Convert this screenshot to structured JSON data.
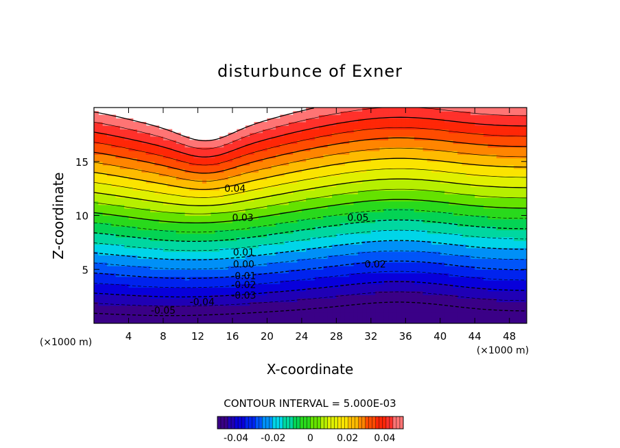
{
  "chart_data": {
    "type": "heatmap",
    "title": "disturbunce of Exner",
    "xlabel": "X-coordinate",
    "ylabel": "Z-coordinate",
    "x_unit_left": "(×1000 m)",
    "x_unit_right": "(×1000 m)",
    "xlim": [
      0,
      50
    ],
    "ylim": [
      0,
      20
    ],
    "x_ticks": [
      4,
      8,
      12,
      16,
      20,
      24,
      28,
      32,
      36,
      40,
      44,
      48
    ],
    "y_ticks": [
      5,
      10,
      15
    ],
    "contour_interval_text": "CONTOUR INTERVAL = 5.000E-03",
    "contour_interval": 0.005,
    "value_range": [
      -0.05,
      0.05
    ],
    "contour_labels": [
      {
        "text": "0.04",
        "x": 16.3,
        "z": 12.5
      },
      {
        "text": "0.05",
        "x": 30.5,
        "z": 9.8
      },
      {
        "text": "0.03",
        "x": 17.2,
        "z": 9.8
      },
      {
        "text": "0.01",
        "x": 17.3,
        "z": 6.6
      },
      {
        "text": "0.00",
        "x": 17.3,
        "z": 5.5
      },
      {
        "text": "0.02",
        "x": 32.5,
        "z": 5.5
      },
      {
        "text": "-0.01",
        "x": 17.3,
        "z": 4.4
      },
      {
        "text": "-0.02",
        "x": 17.3,
        "z": 3.6
      },
      {
        "text": "-0.03",
        "x": 17.3,
        "z": 2.6
      },
      {
        "text": "-0.04",
        "x": 12.5,
        "z": 2.0
      },
      {
        "text": "-0.05",
        "x": 8.0,
        "z": 1.2
      }
    ],
    "colorbar": {
      "ticks": [
        -0.04,
        -0.02,
        0,
        0.02,
        0.04
      ],
      "tick_labels": [
        "-0.04",
        "-0.02",
        "0",
        "0.02",
        "0.04"
      ]
    },
    "colormap": "rainbow (purple-blue-cyan-green-yellow-orange-red-pink); white above 0.05"
  }
}
